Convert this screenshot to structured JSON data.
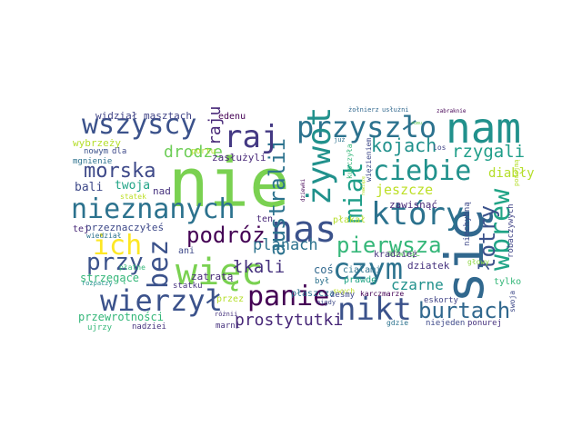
{
  "words": [
    {
      "text": "nie",
      "color": "#7ad151"
    },
    {
      "text": "nam",
      "color": "#21918c"
    },
    {
      "text": "się",
      "color": "#31688e"
    },
    {
      "text": "wszyscy",
      "color": "#3b528b"
    },
    {
      "text": "raj",
      "color": "#443983"
    },
    {
      "text": "przyszło",
      "color": "#2c728e"
    },
    {
      "text": "ciebie",
      "color": "#21918c"
    },
    {
      "text": "nieznanych",
      "color": "#2c728e"
    },
    {
      "text": "nas",
      "color": "#3b528b"
    },
    {
      "text": "żywot",
      "color": "#21918c"
    },
    {
      "text": "który",
      "color": "#2c728e"
    },
    {
      "text": "więc",
      "color": "#7ad151"
    },
    {
      "text": "czym",
      "color": "#2c728e"
    },
    {
      "text": "panie",
      "color": "#440154"
    },
    {
      "text": "nikt",
      "color": "#3b528b"
    },
    {
      "text": "wierzył",
      "color": "#3b528b"
    },
    {
      "text": "burtach",
      "color": "#31688e"
    },
    {
      "text": "wbrew",
      "color": "#20a486"
    },
    {
      "text": "łotry",
      "color": "#3b528b"
    },
    {
      "text": "australii",
      "color": "#2c728e"
    },
    {
      "text": "miał",
      "color": "#1f9e89"
    },
    {
      "text": "ich",
      "color": "#fde725"
    },
    {
      "text": "bez",
      "color": "#3b528b"
    },
    {
      "text": "pierwsza",
      "color": "#35b779"
    },
    {
      "text": "podróż",
      "color": "#440154"
    },
    {
      "text": "przy",
      "color": "#3b528b"
    },
    {
      "text": "morska",
      "color": "#3e4989"
    },
    {
      "text": "łkali",
      "color": "#46327e"
    },
    {
      "text": "kojach",
      "color": "#21918c"
    },
    {
      "text": "rzygali",
      "color": "#1f9e89"
    },
    {
      "text": "drodze",
      "color": "#6ece58"
    },
    {
      "text": "prostytutki",
      "color": "#482878"
    },
    {
      "text": "planach",
      "color": "#2c728e"
    },
    {
      "text": "raju",
      "color": "#482878"
    },
    {
      "text": "czarne",
      "color": "#21918c"
    },
    {
      "text": "twoja",
      "color": "#20a486"
    },
    {
      "text": "jeszcze",
      "color": "#bddf26"
    },
    {
      "text": "diabły",
      "color": "#b5de2b"
    },
    {
      "text": "zawisnąć",
      "color": "#482878"
    },
    {
      "text": "przeznaczyłeś",
      "color": "#3e4989"
    },
    {
      "text": "przewrotności",
      "color": "#35b779"
    },
    {
      "text": "strzegące",
      "color": "#35b779"
    },
    {
      "text": "bali",
      "color": "#3e4989"
    },
    {
      "text": "zasłużyli",
      "color": "#482878"
    },
    {
      "text": "zatratą",
      "color": "#482878"
    },
    {
      "text": "dziatek",
      "color": "#46327e"
    },
    {
      "text": "widział",
      "color": "#414487"
    },
    {
      "text": "masztach",
      "color": "#414487"
    },
    {
      "text": "edenu",
      "color": "#440154"
    },
    {
      "text": "wybrzeży",
      "color": "#b5de2b"
    },
    {
      "text": "nowym",
      "color": "#3b528b"
    },
    {
      "text": "dla",
      "color": "#3e4989"
    },
    {
      "text": "mgnienie",
      "color": "#2c728e"
    },
    {
      "text": "portu",
      "color": "#b5de2b"
    },
    {
      "text": "statek",
      "color": "#bddf26"
    },
    {
      "text": "nad",
      "color": "#46327e"
    },
    {
      "text": "tej",
      "color": "#482878"
    },
    {
      "text": "wiedział",
      "color": "#2c728e"
    },
    {
      "text": "ani",
      "color": "#3e4989"
    },
    {
      "text": "ten",
      "color": "#482878"
    },
    {
      "text": "coś",
      "color": "#31688e"
    },
    {
      "text": "był",
      "color": "#2c728e"
    },
    {
      "text": "płaszcza",
      "color": "#2c728e"
    },
    {
      "text": "prawdę",
      "color": "#20a486"
    },
    {
      "text": "ciałami",
      "color": "#2c728e"
    },
    {
      "text": "mówiąc",
      "color": "#5ec962"
    },
    {
      "text": "kradzież",
      "color": "#46327e"
    },
    {
      "text": "płakał",
      "color": "#b5de2b"
    },
    {
      "text": "swych",
      "color": "#bddf26"
    },
    {
      "text": "nigdy",
      "color": "#3e4989"
    },
    {
      "text": "żeśmy",
      "color": "#3e4989"
    },
    {
      "text": "karczmarze",
      "color": "#440154"
    },
    {
      "text": "eskorty",
      "color": "#414487"
    },
    {
      "text": "gdzie",
      "color": "#2c728e"
    },
    {
      "text": "niejeden",
      "color": "#3e4989"
    },
    {
      "text": "ponurej",
      "color": "#46327e"
    },
    {
      "text": "swoja",
      "color": "#3e4989"
    },
    {
      "text": "tylko",
      "color": "#35b779"
    },
    {
      "text": "głowy",
      "color": "#8fd744"
    },
    {
      "text": "robaczywych",
      "color": "#414487"
    },
    {
      "text": "niechybną",
      "color": "#3e4989"
    },
    {
      "text": "płatne",
      "color": "#35b779"
    },
    {
      "text": "rozpaczy",
      "color": "#21918c"
    },
    {
      "text": "statku",
      "color": "#46327e"
    },
    {
      "text": "przez",
      "color": "#b5de2b"
    },
    {
      "text": "różnii",
      "color": "#46327e"
    },
    {
      "text": "marni",
      "color": "#46327e"
    },
    {
      "text": "ujrzy",
      "color": "#35b779"
    },
    {
      "text": "nadziei",
      "color": "#46327e"
    },
    {
      "text": "żołnierz",
      "color": "#31688e"
    },
    {
      "text": "usłużni",
      "color": "#31688e"
    },
    {
      "text": "zabraknie",
      "color": "#440154"
    },
    {
      "text": "rumu",
      "color": "#6ece58"
    },
    {
      "text": "podejmą",
      "color": "#b5de2b"
    },
    {
      "text": "los",
      "color": "#414487"
    },
    {
      "text": "już",
      "color": "#2c728e"
    },
    {
      "text": "kupczyła",
      "color": "#35b779"
    },
    {
      "text": "więzieniem",
      "color": "#3e4989"
    },
    {
      "text": "dziewki",
      "color": "#440154"
    },
    {
      "text": "nawiązę",
      "color": "#b5de2b"
    }
  ]
}
